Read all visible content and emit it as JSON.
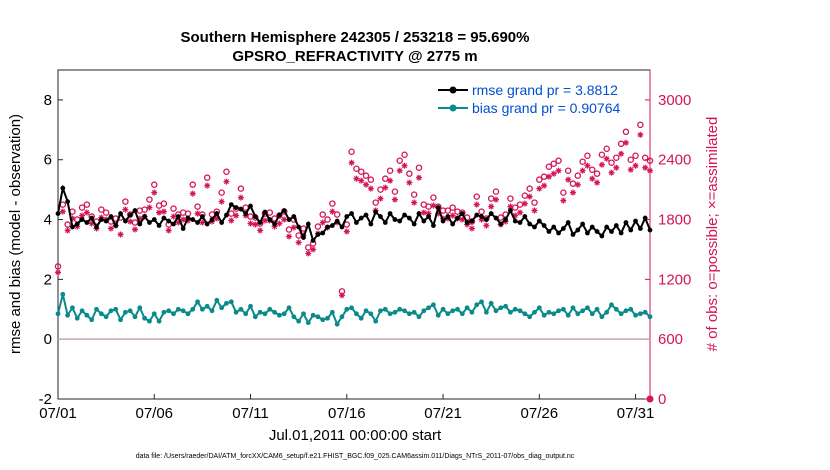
{
  "chart_data": {
    "type": "line",
    "title_line1": "Southern Hemisphere 242305 / 253218 = 95.690%",
    "title_line2": "GPSRO_REFRACTIVITY @ 2775 m",
    "xlabel": "Jul.01,2011 00:00:00 start",
    "ylabel_left": "rmse and bias (model - observation)",
    "ylabel_right": "# of obs: o=possible; ×=assimilated",
    "footnote": "data file: /Users/raeder/DAI/ATM_forcXX/CAM6_setup/f.e21.FHIST_BGC.f09_025.CAM6assim.011/Diags_NTrS_2011-07/obs_diag_output.nc",
    "x_ticks": [
      {
        "day": 0,
        "label": "07/01"
      },
      {
        "day": 5,
        "label": "07/06"
      },
      {
        "day": 10,
        "label": "07/11"
      },
      {
        "day": 15,
        "label": "07/16"
      },
      {
        "day": 20,
        "label": "07/21"
      },
      {
        "day": 25,
        "label": "07/26"
      },
      {
        "day": 30,
        "label": "07/31"
      }
    ],
    "xlim": [
      0,
      30.75
    ],
    "ylim_left": [
      -2,
      9
    ],
    "y_ticks_left": [
      "-2",
      "0",
      "2",
      "4",
      "6",
      "8"
    ],
    "ylim_right": [
      0,
      3300
    ],
    "y_ticks_right": [
      "0",
      "600",
      "1200",
      "1800",
      "2400",
      "3000"
    ],
    "legend": {
      "rmse": "rmse grand pr = 3.8812",
      "bias": "bias grand pr = 0.90764"
    },
    "colors": {
      "rmse": "#000000",
      "bias": "#0a8a8a",
      "obs": "#d4145a",
      "zero_line": "#c8a8b8"
    },
    "n_points": 124,
    "day_step": 0.25,
    "series": [
      {
        "name": "rmse",
        "axis": "left",
        "values": [
          4.2,
          5.05,
          4.6,
          3.75,
          3.85,
          4.0,
          3.9,
          4.05,
          3.75,
          4.0,
          3.95,
          4.1,
          3.8,
          4.2,
          3.95,
          4.15,
          4.3,
          3.85,
          4.1,
          3.9,
          4.0,
          3.8,
          4.05,
          3.95,
          3.85,
          4.1,
          3.7,
          4.05,
          4.0,
          3.9,
          4.1,
          3.85,
          4.0,
          4.2,
          3.9,
          4.15,
          4.5,
          4.4,
          4.35,
          4.2,
          4.45,
          4.1,
          3.9,
          4.25,
          4.0,
          3.85,
          4.15,
          4.3,
          4.0,
          4.1,
          3.75,
          3.4,
          3.85,
          3.3,
          3.5,
          3.55,
          3.75,
          3.8,
          3.95,
          3.75,
          4.1,
          4.2,
          3.9,
          4.05,
          4.15,
          3.85,
          4.25,
          4.1,
          3.9,
          4.2,
          4.0,
          3.95,
          4.15,
          4.05,
          3.85,
          4.2,
          3.95,
          4.1,
          3.8,
          4.4,
          3.95,
          4.1,
          3.85,
          4.05,
          4.2,
          3.9,
          3.95,
          4.15,
          4.1,
          4.0,
          4.2,
          4.05,
          3.85,
          4.0,
          4.3,
          3.95,
          3.9,
          4.1,
          3.85,
          3.75,
          3.95,
          3.8,
          3.6,
          3.75,
          3.55,
          3.7,
          3.9,
          3.5,
          3.65,
          3.85,
          3.55,
          3.75,
          3.6,
          3.45,
          3.75,
          3.6,
          3.8,
          3.55,
          3.9,
          3.65,
          3.95,
          3.7,
          4.05,
          3.65
        ]
      },
      {
        "name": "bias",
        "axis": "left",
        "values": [
          0.85,
          1.5,
          0.8,
          1.05,
          0.7,
          0.95,
          0.8,
          0.65,
          1.0,
          0.85,
          0.75,
          0.95,
          1.0,
          0.65,
          0.9,
          0.95,
          0.75,
          1.05,
          0.7,
          0.6,
          0.85,
          0.6,
          0.9,
          0.95,
          0.85,
          1.0,
          0.95,
          0.85,
          1.0,
          1.25,
          1.0,
          1.1,
          0.95,
          1.3,
          1.05,
          1.2,
          1.25,
          0.9,
          1.0,
          0.85,
          1.1,
          0.75,
          0.9,
          0.85,
          1.0,
          0.9,
          0.8,
          0.85,
          1.05,
          0.75,
          0.6,
          0.85,
          0.55,
          0.8,
          0.75,
          0.65,
          0.7,
          0.9,
          0.5,
          0.75,
          1.0,
          1.05,
          0.85,
          0.7,
          0.95,
          0.85,
          0.6,
          0.95,
          1.0,
          0.85,
          0.9,
          1.0,
          0.95,
          0.85,
          0.9,
          0.75,
          0.95,
          1.05,
          1.15,
          0.8,
          1.0,
          0.85,
          0.95,
          1.0,
          0.85,
          1.05,
          0.9,
          1.15,
          1.25,
          0.9,
          1.2,
          0.95,
          1.05,
          1.1,
          0.9,
          1.0,
          0.95,
          0.85,
          0.75,
          0.9,
          1.05,
          0.8,
          0.9,
          0.85,
          0.95,
          1.0,
          0.8,
          1.05,
          0.85,
          0.95,
          1.05,
          0.85,
          1.0,
          0.75,
          0.9,
          1.15,
          1.0,
          0.85,
          0.95,
          1.0,
          0.8,
          0.85,
          0.9,
          0.75
        ]
      },
      {
        "name": "obs_possible",
        "axis": "right",
        "values": [
          1330,
          1950,
          1750,
          1880,
          1800,
          1920,
          1950,
          1830,
          1780,
          1900,
          1870,
          1780,
          1810,
          1820,
          1980,
          1850,
          1770,
          1890,
          1900,
          2000,
          2150,
          1940,
          1960,
          1750,
          1910,
          1850,
          1870,
          1860,
          2150,
          1930,
          1850,
          2220,
          1850,
          1880,
          2070,
          2280,
          1860,
          1910,
          2110,
          1920,
          1830,
          1820,
          1760,
          1860,
          1870,
          1810,
          1840,
          1880,
          1700,
          1800,
          1640,
          1710,
          1520,
          1560,
          1730,
          1850,
          1800,
          1960,
          1850,
          1080,
          1750,
          2480,
          2310,
          2280,
          2240,
          2200,
          1970,
          2100,
          2210,
          2290,
          2080,
          2390,
          2450,
          2260,
          2050,
          2320,
          1950,
          1930,
          2020,
          1930,
          1890,
          1890,
          1920,
          1880,
          1870,
          1820,
          1780,
          2030,
          1880,
          1810,
          2010,
          2080,
          1820,
          1850,
          2010,
          1920,
          1950,
          2040,
          2110,
          1970,
          2200,
          2230,
          2330,
          2360,
          2390,
          2070,
          2290,
          2160,
          2240,
          2380,
          2440,
          2300,
          2260,
          2450,
          2510,
          2370,
          2420,
          2560,
          2680,
          2400,
          2440,
          2750,
          2420,
          2390
        ]
      },
      {
        "name": "obs_assimilated",
        "axis": "right",
        "values": [
          1270,
          1880,
          1690,
          1810,
          1730,
          1840,
          1870,
          1760,
          1710,
          1820,
          1800,
          1710,
          1740,
          1650,
          1900,
          1780,
          1700,
          1810,
          1830,
          1920,
          2070,
          1870,
          1880,
          1690,
          1830,
          1770,
          1800,
          1790,
          2060,
          1860,
          1770,
          2140,
          1780,
          1810,
          1980,
          2180,
          1790,
          1840,
          2020,
          1840,
          1760,
          1750,
          1690,
          1790,
          1790,
          1730,
          1760,
          1800,
          1630,
          1720,
          1570,
          1640,
          1460,
          1500,
          1660,
          1770,
          1720,
          1880,
          1770,
          1040,
          1680,
          2370,
          2210,
          2190,
          2150,
          2110,
          1890,
          2010,
          2120,
          2190,
          2000,
          2290,
          2340,
          2170,
          1970,
          2220,
          1870,
          1860,
          1940,
          1860,
          1810,
          1810,
          1840,
          1810,
          1800,
          1750,
          1710,
          1950,
          1800,
          1740,
          1930,
          2000,
          1750,
          1780,
          1930,
          1840,
          1870,
          1960,
          2030,
          1890,
          2110,
          2140,
          2230,
          2260,
          2290,
          1990,
          2200,
          2070,
          2150,
          2290,
          2340,
          2210,
          2170,
          2350,
          2410,
          2270,
          2320,
          2460,
          2570,
          2300,
          2340,
          2650,
          2320,
          2290
        ]
      }
    ]
  }
}
